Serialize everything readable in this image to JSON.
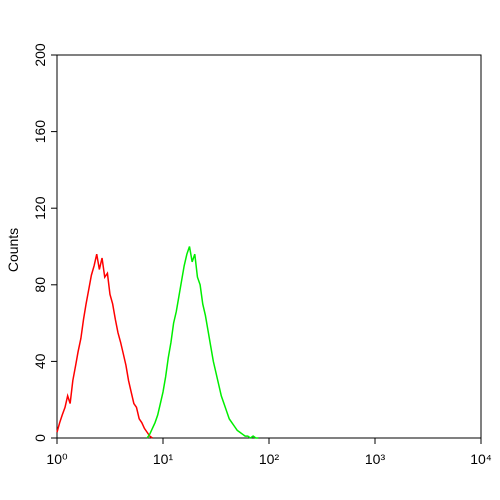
{
  "chart_data": {
    "type": "line",
    "ylabel": "Counts",
    "xscale": "log",
    "xlim": [
      1,
      10000
    ],
    "xticks": [
      {
        "value": 1,
        "label": "10⁰"
      },
      {
        "value": 10,
        "label": "10¹"
      },
      {
        "value": 100,
        "label": "10²"
      },
      {
        "value": 1000,
        "label": "10³"
      },
      {
        "value": 10000,
        "label": "10⁴"
      }
    ],
    "ylim": [
      0,
      200
    ],
    "yticks": [
      0,
      40,
      80,
      120,
      160,
      200
    ],
    "series": [
      {
        "color": "#ff0000",
        "x": [
          1,
          1.06,
          1.12,
          1.19,
          1.26,
          1.33,
          1.41,
          1.5,
          1.58,
          1.68,
          1.78,
          1.88,
          2,
          2.11,
          2.24,
          2.37,
          2.51,
          2.66,
          2.82,
          2.99,
          3.16,
          3.35,
          3.55,
          3.76,
          3.98,
          4.22,
          4.47,
          4.73,
          5.01,
          5.31,
          5.62,
          5.96,
          6.31,
          6.68,
          7.08,
          7.5,
          7.94
        ],
        "values": [
          3,
          8,
          12,
          16,
          22,
          18,
          30,
          38,
          45,
          52,
          62,
          70,
          78,
          85,
          90,
          96,
          88,
          94,
          84,
          86,
          75,
          70,
          62,
          55,
          50,
          44,
          38,
          30,
          24,
          18,
          16,
          10,
          8,
          5,
          3,
          1,
          0
        ]
      },
      {
        "color": "#00ee00",
        "x": [
          7.08,
          7.5,
          7.94,
          8.41,
          8.91,
          9.44,
          10,
          10.59,
          11.22,
          11.89,
          12.59,
          13.34,
          14.13,
          14.96,
          15.85,
          16.79,
          17.78,
          18.84,
          19.95,
          21.13,
          22.39,
          23.71,
          25.12,
          26.61,
          28.18,
          29.85,
          31.62,
          33.5,
          35.48,
          37.58,
          39.81,
          42.17,
          44.67,
          47.32,
          50.12,
          53.09,
          56.23,
          59.57,
          63.1,
          66.83,
          70.79,
          74.99,
          79.43
        ],
        "values": [
          0,
          2,
          5,
          8,
          12,
          18,
          24,
          32,
          42,
          50,
          60,
          66,
          74,
          82,
          90,
          96,
          100,
          92,
          96,
          84,
          80,
          70,
          64,
          56,
          48,
          40,
          34,
          28,
          22,
          18,
          14,
          10,
          8,
          6,
          4,
          3,
          2,
          1,
          1,
          0,
          1,
          0,
          0
        ]
      }
    ]
  }
}
